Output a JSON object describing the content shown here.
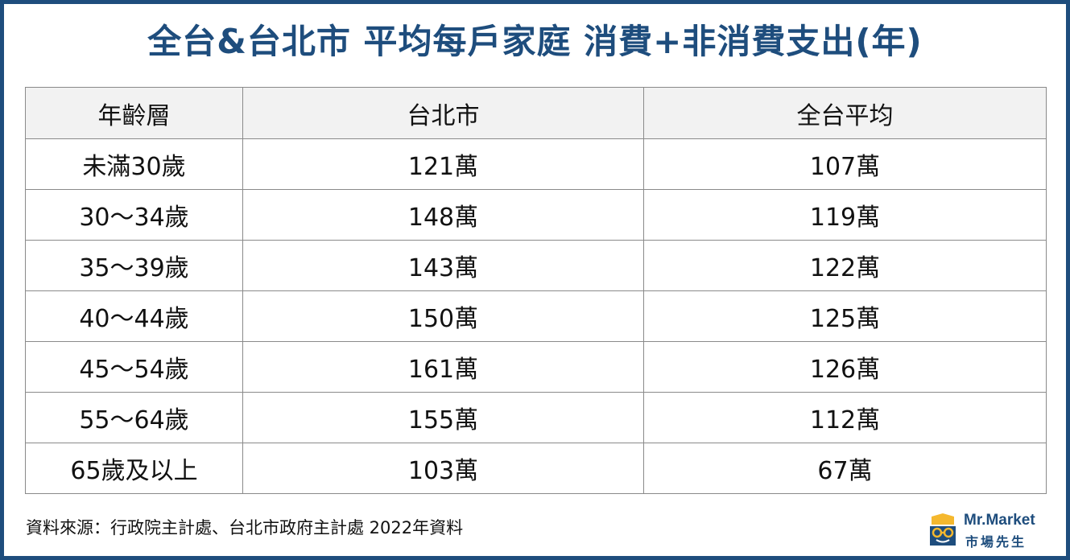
{
  "title": "全台&台北市 平均每戶家庭  消費+非消費支出(年)",
  "table": {
    "headers": [
      "年齡層",
      "台北市",
      "全台平均"
    ],
    "rows": [
      [
        "未滿30歲",
        "121萬",
        "107萬"
      ],
      [
        "30～34歲",
        "148萬",
        "119萬"
      ],
      [
        "35～39歲",
        "143萬",
        "122萬"
      ],
      [
        "40～44歲",
        "150萬",
        "125萬"
      ],
      [
        "45～54歲",
        "161萬",
        "126萬"
      ],
      [
        "55～64歲",
        "155萬",
        "112萬"
      ],
      [
        "65歲及以上",
        "103萬",
        "67萬"
      ]
    ]
  },
  "source": "資料來源：行政院主計處、台北市政府主計處 2022年資料",
  "logo": {
    "name_en": "Mr.Market",
    "name_zh": "市場先生",
    "icon": "mr-market-logo-icon"
  },
  "colors": {
    "brand": "#1e4d7d",
    "accent": "#f5b82e",
    "header_bg": "#f2f2f2",
    "border": "#8a8a8a"
  }
}
